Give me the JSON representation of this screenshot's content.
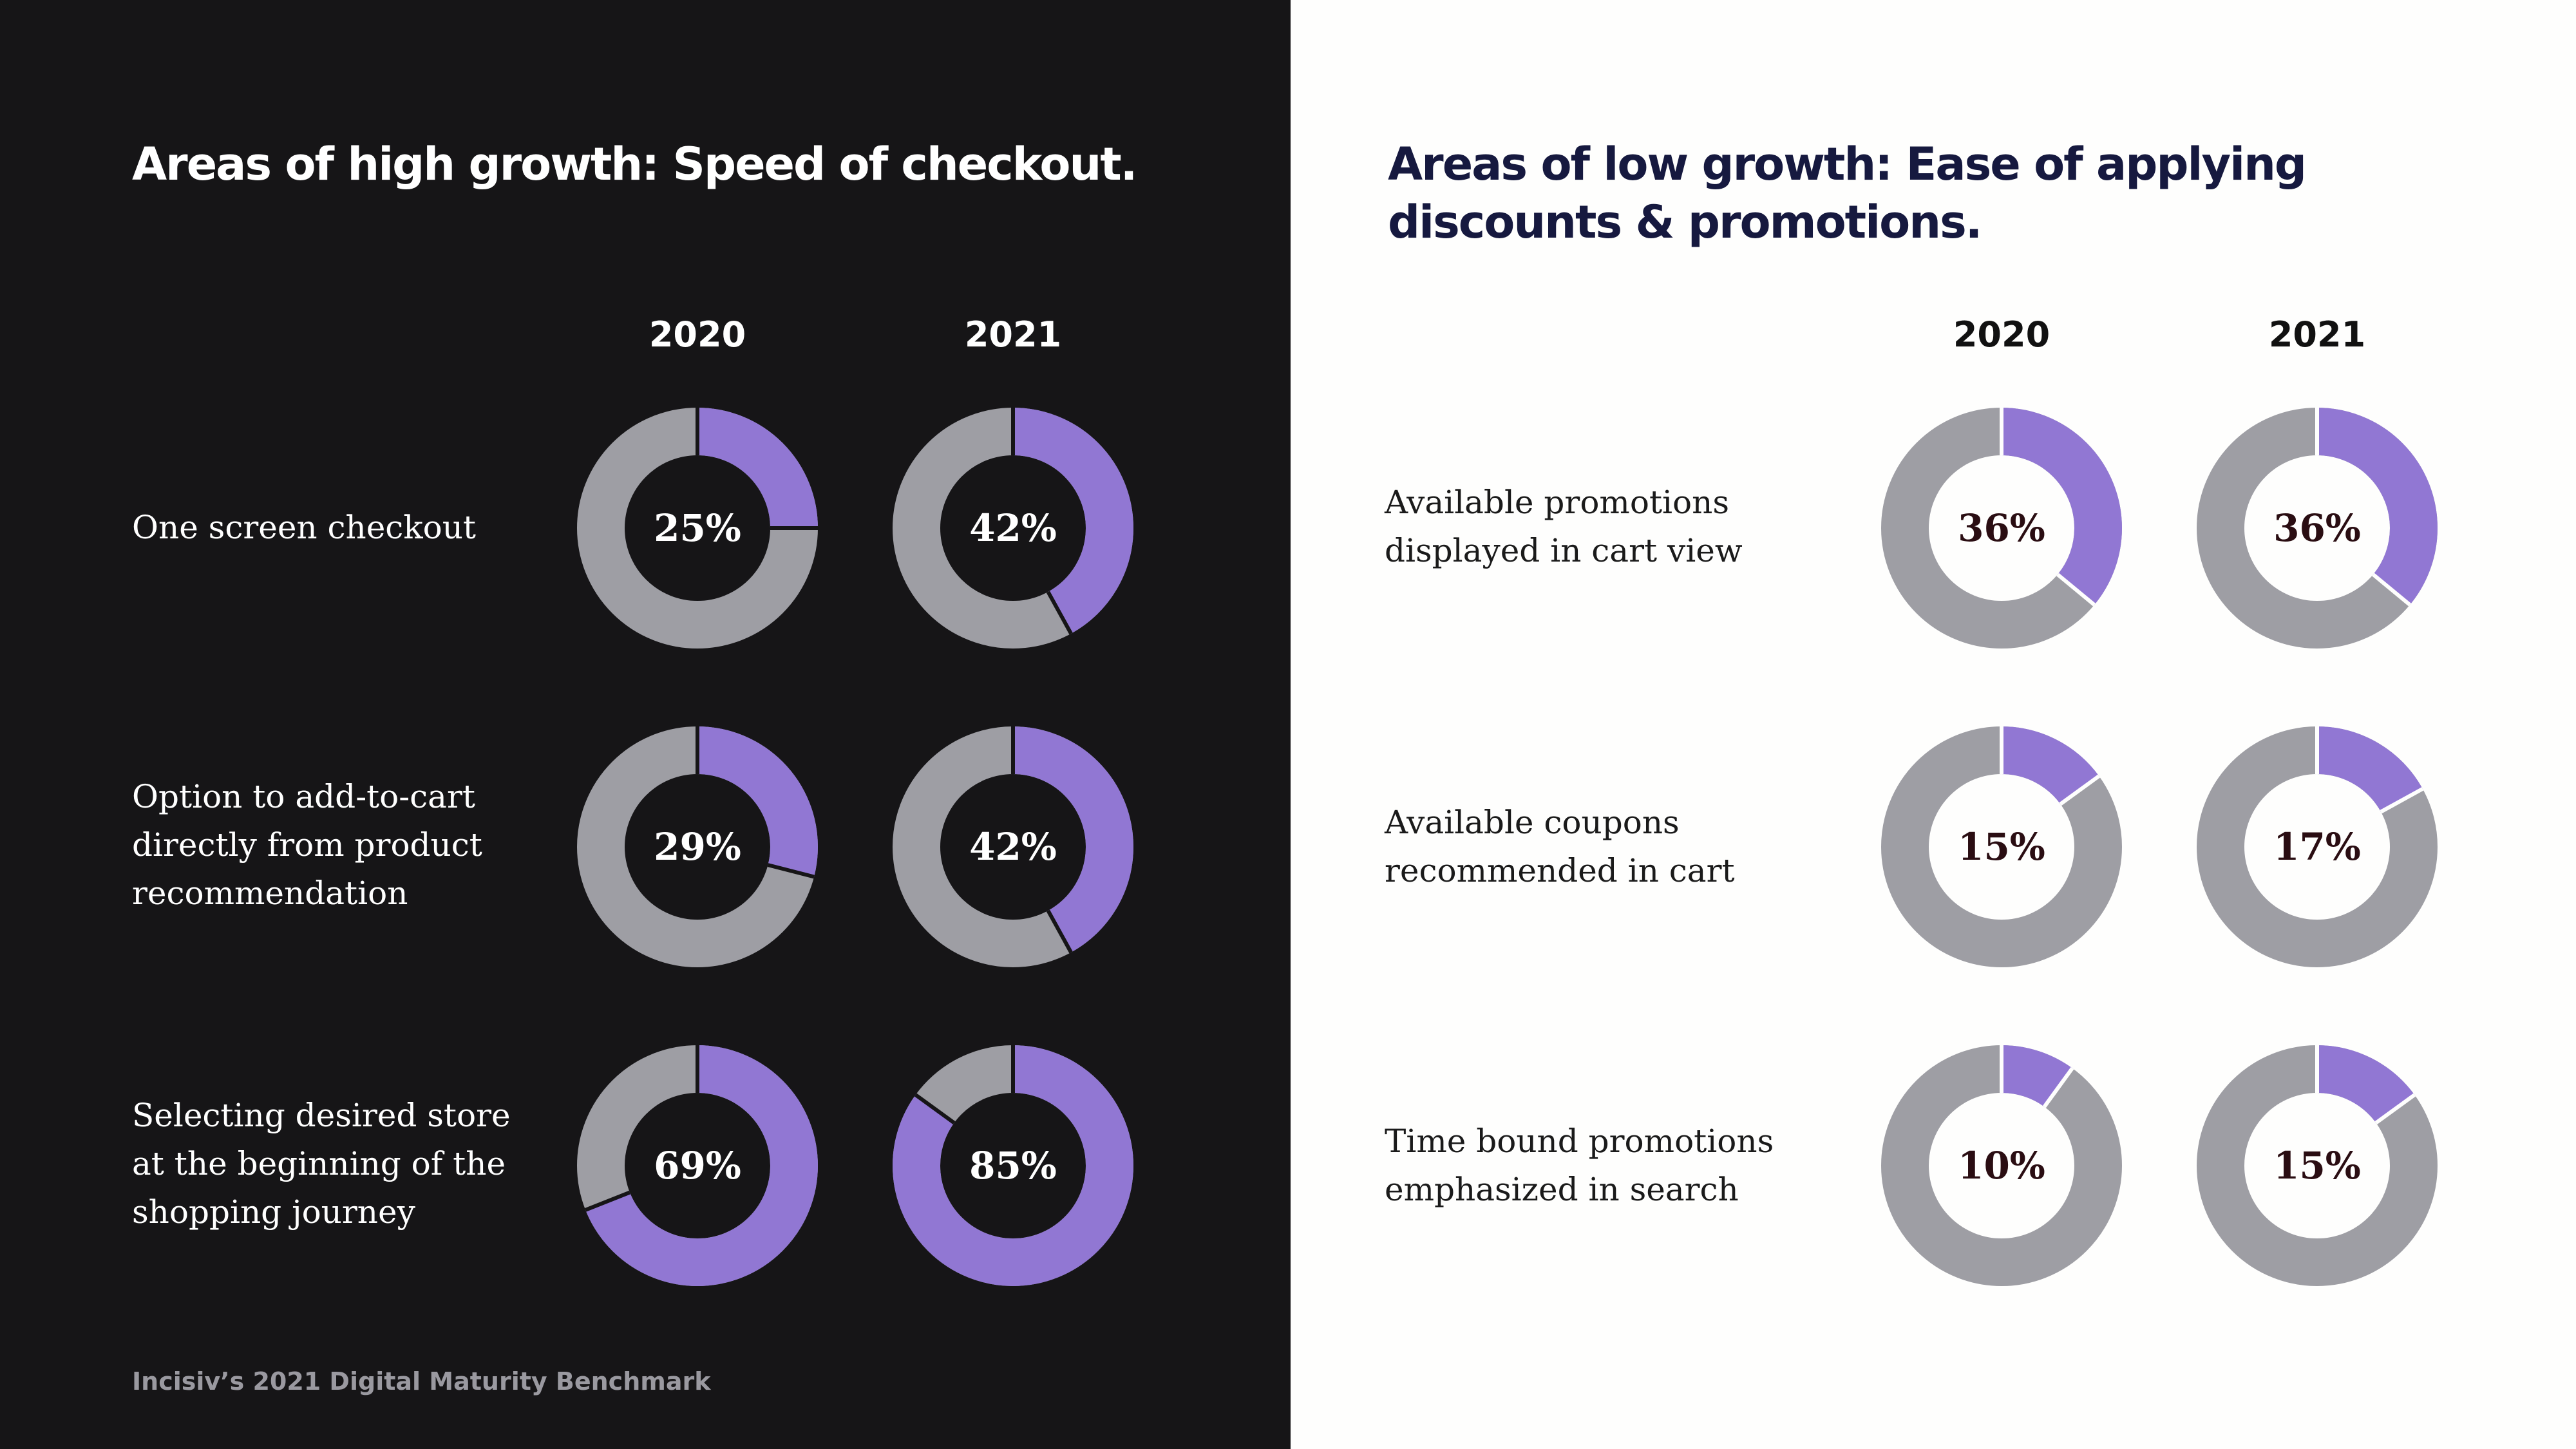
{
  "colors": {
    "dark_bg": "#161517",
    "light_bg": "#fefefd",
    "ring_purple": "#9177d3",
    "ring_grey": "#9e9ea4",
    "dark_title": "#ffffff",
    "light_title": "#16193f"
  },
  "footer": "Incisiv’s 2021 Digital Maturity Benchmark",
  "chart_data": [
    {
      "type": "pie",
      "title": "Areas of high growth: Speed of checkout.",
      "years": [
        "2020",
        "2021"
      ],
      "rows": [
        {
          "label": "One screen checkout",
          "values": [
            25,
            42
          ],
          "labels": [
            "25%",
            "42%"
          ]
        },
        {
          "label": "Option to add-to-cart\ndirectly from product\nrecommendation",
          "values": [
            29,
            42
          ],
          "labels": [
            "29%",
            "42%"
          ]
        },
        {
          "label": "Selecting desired store\nat the beginning of the\nshopping journey",
          "values": [
            69,
            85
          ],
          "labels": [
            "69%",
            "85%"
          ]
        }
      ]
    },
    {
      "type": "pie",
      "title": "Areas of low growth: Ease of applying discounts & promotions.",
      "years": [
        "2020",
        "2021"
      ],
      "rows": [
        {
          "label": "Available promotions\ndisplayed in cart view",
          "values": [
            36,
            36
          ],
          "labels": [
            "36%",
            "36%"
          ]
        },
        {
          "label": "Available coupons\nrecommended in cart",
          "values": [
            15,
            17
          ],
          "labels": [
            "15%",
            "17%"
          ]
        },
        {
          "label": "Time bound promotions\nemphasized in search",
          "values": [
            10,
            15
          ],
          "labels": [
            "10%",
            "15%"
          ]
        }
      ]
    }
  ]
}
